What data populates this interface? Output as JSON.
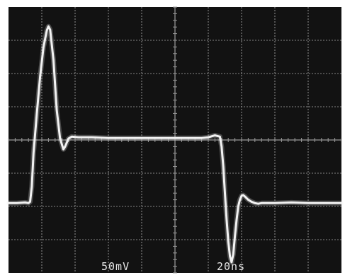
{
  "chart_data": {
    "type": "line",
    "title": "",
    "xlabel": "",
    "ylabel": "",
    "grid": true,
    "divisions": {
      "x": 10,
      "y": 8
    },
    "minor_ticks_per_division": 5,
    "readouts": {
      "volts_per_div": "50mV",
      "time_per_div": "20ns"
    },
    "scale": {
      "volts_per_div_mV": 50,
      "time_per_div_ns": 20
    },
    "xlim": [
      0,
      200
    ],
    "ylim": [
      -200,
      200
    ],
    "series": [
      {
        "x": [
          0,
          5,
          10,
          12,
          13,
          14,
          15,
          17,
          19,
          21,
          23,
          24,
          25,
          27,
          29,
          31,
          33,
          34,
          36,
          38,
          42,
          50,
          60,
          70,
          80,
          90,
          100,
          110,
          116,
          120,
          124,
          127,
          128,
          129,
          130,
          131,
          132,
          133,
          134,
          135,
          136,
          137,
          138,
          139,
          140,
          141,
          142,
          144,
          146,
          148,
          150,
          152,
          155,
          160,
          170,
          180,
          190,
          200
        ],
        "y": [
          -95,
          -95,
          -94,
          -95,
          -93,
          -70,
          -20,
          40,
          95,
          140,
          165,
          171,
          166,
          120,
          45,
          2,
          -14,
          -10,
          2,
          5,
          4,
          4,
          3,
          3,
          3,
          3,
          3,
          3,
          3,
          4,
          7,
          5,
          -10,
          -40,
          -80,
          -120,
          -152,
          -175,
          -184,
          -172,
          -145,
          -120,
          -100,
          -90,
          -84,
          -83,
          -85,
          -90,
          -93,
          -95,
          -96,
          -95,
          -95,
          -95,
          -94,
          -95,
          -95,
          -95
        ]
      }
    ]
  },
  "style": {
    "background": "#121212",
    "border": "#0a0a0a",
    "grid": "#9a9a9a",
    "trace": "#f2f2f2",
    "readout": "#e8e8e8"
  }
}
